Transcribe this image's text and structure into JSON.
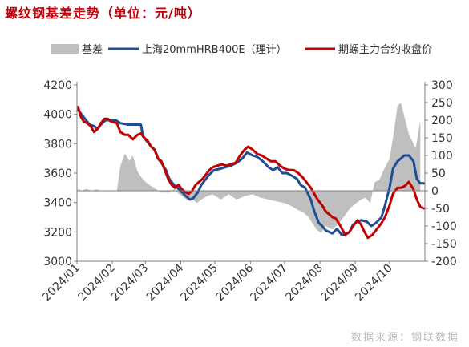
{
  "title": "螺纹钢基差走势（单位：元/吨）",
  "source": "数据来源：钢联数据",
  "colors": {
    "basis": "#bfbfbf",
    "spot": "#1f4e96",
    "futures": "#c00000",
    "title": "#c0000b",
    "source": "#b8b8b8"
  },
  "chart_data": {
    "type": "line",
    "title": "螺纹钢基差走势（单位：元/吨）",
    "x_domain": [
      "2024-01-01",
      "2024-11-01"
    ],
    "x_ticks": [
      "2024/01",
      "2024/02",
      "2024/03",
      "2024/04",
      "2024/05",
      "2024/06",
      "2024/07",
      "2024/08",
      "2024/09",
      "2024/10"
    ],
    "ylim_left": [
      3000,
      4200
    ],
    "yticks_left": [
      3000,
      3200,
      3400,
      3600,
      3800,
      4000,
      4200
    ],
    "ylim_right": [
      -200,
      300
    ],
    "yticks_right": [
      -200,
      -150,
      -100,
      -50,
      0,
      50,
      100,
      150,
      200,
      250,
      300
    ],
    "legend_position": "top",
    "grid": false,
    "series": [
      {
        "name": "基差",
        "kind": "area",
        "axis": "right",
        "color": "#bfbfbf",
        "points": [
          [
            "2024-01-02",
            5
          ],
          [
            "2024-01-05",
            0
          ],
          [
            "2024-01-09",
            5
          ],
          [
            "2024-01-14",
            0
          ],
          [
            "2024-01-18",
            4
          ],
          [
            "2024-01-22",
            0
          ],
          [
            "2024-01-26",
            0
          ],
          [
            "2024-01-31",
            0
          ],
          [
            "2024-02-05",
            0
          ],
          [
            "2024-02-08",
            70
          ],
          [
            "2024-02-12",
            105
          ],
          [
            "2024-02-16",
            85
          ],
          [
            "2024-02-19",
            100
          ],
          [
            "2024-02-23",
            55
          ],
          [
            "2024-02-26",
            40
          ],
          [
            "2024-03-01",
            25
          ],
          [
            "2024-03-05",
            15
          ],
          [
            "2024-03-08",
            10
          ],
          [
            "2024-03-12",
            0
          ],
          [
            "2024-03-15",
            -5
          ],
          [
            "2024-03-19",
            -5
          ],
          [
            "2024-03-22",
            -5
          ],
          [
            "2024-03-26",
            5
          ],
          [
            "2024-03-29",
            -5
          ],
          [
            "2024-04-02",
            -15
          ],
          [
            "2024-04-06",
            -25
          ],
          [
            "2024-04-10",
            -20
          ],
          [
            "2024-04-15",
            -35
          ],
          [
            "2024-04-19",
            -25
          ],
          [
            "2024-04-24",
            -15
          ],
          [
            "2024-04-29",
            -10
          ],
          [
            "2024-05-06",
            -25
          ],
          [
            "2024-05-13",
            -10
          ],
          [
            "2024-05-20",
            -25
          ],
          [
            "2024-05-27",
            -15
          ],
          [
            "2024-06-03",
            -10
          ],
          [
            "2024-06-10",
            -20
          ],
          [
            "2024-06-17",
            -25
          ],
          [
            "2024-06-24",
            -30
          ],
          [
            "2024-07-01",
            -35
          ],
          [
            "2024-07-08",
            -45
          ],
          [
            "2024-07-13",
            -55
          ],
          [
            "2024-07-17",
            -60
          ],
          [
            "2024-07-22",
            -75
          ],
          [
            "2024-07-26",
            -95
          ],
          [
            "2024-07-29",
            -110
          ],
          [
            "2024-08-02",
            -120
          ],
          [
            "2024-08-06",
            -100
          ],
          [
            "2024-08-12",
            -110
          ],
          [
            "2024-08-18",
            -90
          ],
          [
            "2024-08-23",
            -70
          ],
          [
            "2024-08-26",
            -55
          ],
          [
            "2024-08-29",
            -45
          ],
          [
            "2024-09-02",
            -35
          ],
          [
            "2024-09-06",
            -25
          ],
          [
            "2024-09-10",
            -20
          ],
          [
            "2024-09-14",
            -35
          ],
          [
            "2024-09-18",
            25
          ],
          [
            "2024-09-22",
            30
          ],
          [
            "2024-09-26",
            60
          ],
          [
            "2024-10-01",
            90
          ],
          [
            "2024-10-04",
            150
          ],
          [
            "2024-10-08",
            240
          ],
          [
            "2024-10-11",
            250
          ],
          [
            "2024-10-14",
            210
          ],
          [
            "2024-10-18",
            160
          ],
          [
            "2024-10-21",
            140
          ],
          [
            "2024-10-24",
            120
          ],
          [
            "2024-10-28",
            200
          ]
        ]
      },
      {
        "name": "上海20mmHRB400E（理计）",
        "kind": "line",
        "axis": "left",
        "color": "#1f4e96",
        "points": [
          [
            "2024-01-02",
            4030
          ],
          [
            "2024-01-05",
            4000
          ],
          [
            "2024-01-09",
            3960
          ],
          [
            "2024-01-12",
            3930
          ],
          [
            "2024-01-16",
            3920
          ],
          [
            "2024-01-19",
            3900
          ],
          [
            "2024-01-22",
            3930
          ],
          [
            "2024-01-26",
            3960
          ],
          [
            "2024-01-31",
            3960
          ],
          [
            "2024-02-04",
            3960
          ],
          [
            "2024-02-08",
            3940
          ],
          [
            "2024-02-15",
            3930
          ],
          [
            "2024-02-20",
            3930
          ],
          [
            "2024-02-26",
            3930
          ],
          [
            "2024-02-28",
            3850
          ],
          [
            "2024-03-02",
            3820
          ],
          [
            "2024-03-06",
            3780
          ],
          [
            "2024-03-09",
            3760
          ],
          [
            "2024-03-12",
            3700
          ],
          [
            "2024-03-15",
            3670
          ],
          [
            "2024-03-19",
            3620
          ],
          [
            "2024-03-22",
            3560
          ],
          [
            "2024-03-26",
            3520
          ],
          [
            "2024-03-29",
            3500
          ],
          [
            "2024-04-02",
            3470
          ],
          [
            "2024-04-06",
            3440
          ],
          [
            "2024-04-09",
            3420
          ],
          [
            "2024-04-12",
            3430
          ],
          [
            "2024-04-16",
            3470
          ],
          [
            "2024-04-19",
            3520
          ],
          [
            "2024-04-23",
            3560
          ],
          [
            "2024-04-26",
            3590
          ],
          [
            "2024-04-30",
            3620
          ],
          [
            "2024-05-06",
            3630
          ],
          [
            "2024-05-10",
            3640
          ],
          [
            "2024-05-15",
            3650
          ],
          [
            "2024-05-20",
            3670
          ],
          [
            "2024-05-25",
            3700
          ],
          [
            "2024-05-29",
            3740
          ],
          [
            "2024-06-03",
            3720
          ],
          [
            "2024-06-07",
            3710
          ],
          [
            "2024-06-12",
            3680
          ],
          [
            "2024-06-17",
            3640
          ],
          [
            "2024-06-21",
            3620
          ],
          [
            "2024-06-25",
            3640
          ],
          [
            "2024-06-29",
            3600
          ],
          [
            "2024-07-03",
            3600
          ],
          [
            "2024-07-08",
            3580
          ],
          [
            "2024-07-12",
            3560
          ],
          [
            "2024-07-15",
            3520
          ],
          [
            "2024-07-19",
            3500
          ],
          [
            "2024-07-24",
            3420
          ],
          [
            "2024-07-27",
            3340
          ],
          [
            "2024-07-31",
            3260
          ],
          [
            "2024-08-03",
            3240
          ],
          [
            "2024-08-06",
            3210
          ],
          [
            "2024-08-12",
            3190
          ],
          [
            "2024-08-16",
            3220
          ],
          [
            "2024-08-20",
            3180
          ],
          [
            "2024-08-23",
            3180
          ],
          [
            "2024-08-27",
            3200
          ],
          [
            "2024-08-30",
            3250
          ],
          [
            "2024-09-03",
            3270
          ],
          [
            "2024-09-06",
            3280
          ],
          [
            "2024-09-11",
            3270
          ],
          [
            "2024-09-15",
            3240
          ],
          [
            "2024-09-19",
            3260
          ],
          [
            "2024-09-24",
            3300
          ],
          [
            "2024-09-27",
            3380
          ],
          [
            "2024-10-01",
            3500
          ],
          [
            "2024-10-04",
            3630
          ],
          [
            "2024-10-08",
            3680
          ],
          [
            "2024-10-11",
            3700
          ],
          [
            "2024-10-14",
            3720
          ],
          [
            "2024-10-18",
            3720
          ],
          [
            "2024-10-22",
            3680
          ],
          [
            "2024-10-25",
            3560
          ],
          [
            "2024-10-28",
            3530
          ],
          [
            "2024-10-31",
            3530
          ]
        ]
      },
      {
        "name": "期螺主力合约收盘价",
        "kind": "line",
        "axis": "left",
        "color": "#c00000",
        "points": [
          [
            "2024-01-02",
            4050
          ],
          [
            "2024-01-04",
            3990
          ],
          [
            "2024-01-07",
            3950
          ],
          [
            "2024-01-10",
            3940
          ],
          [
            "2024-01-13",
            3920
          ],
          [
            "2024-01-16",
            3880
          ],
          [
            "2024-01-19",
            3900
          ],
          [
            "2024-01-22",
            3940
          ],
          [
            "2024-01-25",
            3970
          ],
          [
            "2024-01-28",
            3970
          ],
          [
            "2024-01-31",
            3950
          ],
          [
            "2024-02-05",
            3940
          ],
          [
            "2024-02-08",
            3880
          ],
          [
            "2024-02-12",
            3860
          ],
          [
            "2024-02-15",
            3860
          ],
          [
            "2024-02-19",
            3830
          ],
          [
            "2024-02-23",
            3860
          ],
          [
            "2024-02-26",
            3870
          ],
          [
            "2024-02-29",
            3840
          ],
          [
            "2024-03-03",
            3820
          ],
          [
            "2024-03-06",
            3780
          ],
          [
            "2024-03-09",
            3760
          ],
          [
            "2024-03-12",
            3700
          ],
          [
            "2024-03-15",
            3680
          ],
          [
            "2024-03-18",
            3620
          ],
          [
            "2024-03-21",
            3560
          ],
          [
            "2024-03-24",
            3520
          ],
          [
            "2024-03-27",
            3500
          ],
          [
            "2024-03-30",
            3520
          ],
          [
            "2024-04-02",
            3490
          ],
          [
            "2024-04-05",
            3470
          ],
          [
            "2024-04-08",
            3460
          ],
          [
            "2024-04-11",
            3480
          ],
          [
            "2024-04-14",
            3520
          ],
          [
            "2024-04-17",
            3540
          ],
          [
            "2024-04-20",
            3560
          ],
          [
            "2024-04-23",
            3590
          ],
          [
            "2024-04-26",
            3620
          ],
          [
            "2024-04-29",
            3640
          ],
          [
            "2024-05-03",
            3650
          ],
          [
            "2024-05-07",
            3660
          ],
          [
            "2024-05-11",
            3650
          ],
          [
            "2024-05-15",
            3660
          ],
          [
            "2024-05-19",
            3670
          ],
          [
            "2024-05-23",
            3720
          ],
          [
            "2024-05-27",
            3760
          ],
          [
            "2024-05-30",
            3780
          ],
          [
            "2024-06-03",
            3760
          ],
          [
            "2024-06-07",
            3730
          ],
          [
            "2024-06-11",
            3720
          ],
          [
            "2024-06-15",
            3700
          ],
          [
            "2024-06-19",
            3680
          ],
          [
            "2024-06-23",
            3680
          ],
          [
            "2024-06-27",
            3650
          ],
          [
            "2024-07-01",
            3630
          ],
          [
            "2024-07-05",
            3620
          ],
          [
            "2024-07-09",
            3620
          ],
          [
            "2024-07-13",
            3600
          ],
          [
            "2024-07-17",
            3570
          ],
          [
            "2024-07-20",
            3540
          ],
          [
            "2024-07-24",
            3500
          ],
          [
            "2024-07-27",
            3460
          ],
          [
            "2024-07-30",
            3420
          ],
          [
            "2024-08-03",
            3380
          ],
          [
            "2024-08-06",
            3340
          ],
          [
            "2024-08-09",
            3320
          ],
          [
            "2024-08-12",
            3300
          ],
          [
            "2024-08-15",
            3290
          ],
          [
            "2024-08-19",
            3240
          ],
          [
            "2024-08-23",
            3180
          ],
          [
            "2024-08-27",
            3200
          ],
          [
            "2024-08-30",
            3240
          ],
          [
            "2024-09-03",
            3280
          ],
          [
            "2024-09-06",
            3250
          ],
          [
            "2024-09-09",
            3200
          ],
          [
            "2024-09-12",
            3160
          ],
          [
            "2024-09-16",
            3180
          ],
          [
            "2024-09-20",
            3220
          ],
          [
            "2024-09-24",
            3260
          ],
          [
            "2024-09-27",
            3300
          ],
          [
            "2024-10-01",
            3380
          ],
          [
            "2024-10-04",
            3460
          ],
          [
            "2024-10-08",
            3500
          ],
          [
            "2024-10-11",
            3500
          ],
          [
            "2024-10-14",
            3510
          ],
          [
            "2024-10-18",
            3540
          ],
          [
            "2024-10-22",
            3490
          ],
          [
            "2024-10-25",
            3420
          ],
          [
            "2024-10-28",
            3370
          ],
          [
            "2024-10-31",
            3360
          ]
        ]
      }
    ]
  }
}
